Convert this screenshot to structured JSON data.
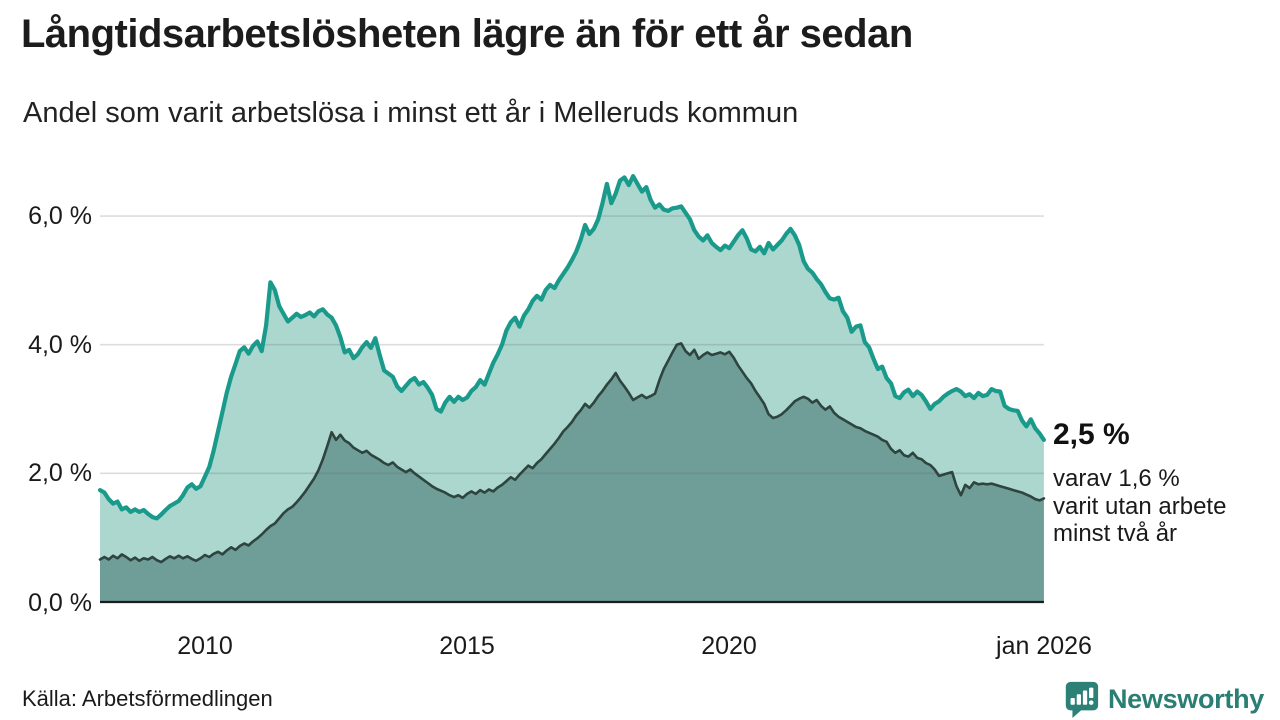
{
  "header": {
    "title": "Långtidsarbetslösheten lägre än för ett år sedan",
    "subtitle": "Andel som varit arbetslösa i minst ett år i Melleruds kommun"
  },
  "annotation": {
    "value_label": "2,5 %",
    "detail_line1": "varav 1,6 %",
    "detail_line2": "varit utan arbete",
    "detail_line3": "minst två år"
  },
  "footer": {
    "source": "Källa: Arbetsförmedlingen",
    "brand": "Newsworthy",
    "brand_logo_icon": "chart-bars-exclamation-pin"
  },
  "colors": {
    "line_total": "#1a9a8b",
    "area_total": "#abd7cf",
    "line_two_years": "#2e443f",
    "area_two_years": "#6f9d97",
    "grid": "rgba(100,100,100,0.22)",
    "axis": "#1c1c1c",
    "brand_teal": "#2c8076",
    "text": "#1a1a1a"
  },
  "chart_data": {
    "type": "area",
    "title": "Långtidsarbetslösheten lägre än för ett år sedan",
    "subtitle": "Andel som varit arbetslösa i minst ett år i Melleruds kommun",
    "unit": "%",
    "x_start_year": 2008,
    "x_step_months": 1,
    "x_end_label": "jan 2026",
    "x_range": [
      2008,
      2026
    ],
    "ylim": [
      0,
      7.0
    ],
    "grid": true,
    "legend_position": "none",
    "x_ticks": [
      {
        "year": 2010,
        "label": "2010"
      },
      {
        "year": 2015,
        "label": "2015"
      },
      {
        "year": 2020,
        "label": "2020"
      },
      {
        "year": 2026,
        "label": "jan 2026"
      }
    ],
    "y_ticks": [
      {
        "value": 0,
        "label": "0,0 %"
      },
      {
        "value": 2,
        "label": "2,0 %"
      },
      {
        "value": 4,
        "label": "4,0 %"
      },
      {
        "value": 6,
        "label": "6,0 %"
      }
    ],
    "series": [
      {
        "name": "Andel arbetslösa minst ett år",
        "last_value": 2.5,
        "values": [
          1.74,
          1.7,
          1.6,
          1.53,
          1.56,
          1.44,
          1.47,
          1.4,
          1.44,
          1.4,
          1.43,
          1.37,
          1.32,
          1.3,
          1.36,
          1.43,
          1.49,
          1.53,
          1.57,
          1.66,
          1.78,
          1.83,
          1.76,
          1.8,
          1.95,
          2.1,
          2.35,
          2.65,
          2.95,
          3.25,
          3.5,
          3.7,
          3.9,
          3.96,
          3.86,
          3.98,
          4.05,
          3.9,
          4.3,
          4.97,
          4.85,
          4.6,
          4.48,
          4.36,
          4.42,
          4.48,
          4.43,
          4.46,
          4.5,
          4.44,
          4.52,
          4.55,
          4.47,
          4.42,
          4.3,
          4.12,
          3.88,
          3.92,
          3.79,
          3.85,
          3.96,
          4.04,
          3.95,
          4.1,
          3.84,
          3.6,
          3.55,
          3.5,
          3.35,
          3.28,
          3.36,
          3.44,
          3.48,
          3.38,
          3.42,
          3.33,
          3.22,
          3.0,
          2.96,
          3.1,
          3.19,
          3.11,
          3.19,
          3.14,
          3.18,
          3.28,
          3.34,
          3.45,
          3.38,
          3.55,
          3.72,
          3.85,
          4.0,
          4.22,
          4.35,
          4.42,
          4.28,
          4.45,
          4.55,
          4.68,
          4.76,
          4.7,
          4.85,
          4.93,
          4.88,
          5.0,
          5.1,
          5.2,
          5.32,
          5.45,
          5.63,
          5.86,
          5.72,
          5.8,
          5.95,
          6.2,
          6.5,
          6.2,
          6.35,
          6.55,
          6.6,
          6.48,
          6.62,
          6.5,
          6.38,
          6.45,
          6.25,
          6.13,
          6.18,
          6.1,
          6.08,
          6.12,
          6.13,
          6.15,
          6.05,
          5.95,
          5.78,
          5.68,
          5.62,
          5.7,
          5.58,
          5.52,
          5.47,
          5.54,
          5.5,
          5.6,
          5.7,
          5.78,
          5.65,
          5.48,
          5.45,
          5.52,
          5.42,
          5.58,
          5.48,
          5.55,
          5.62,
          5.72,
          5.8,
          5.7,
          5.55,
          5.3,
          5.18,
          5.12,
          5.02,
          4.94,
          4.82,
          4.72,
          4.7,
          4.73,
          4.52,
          4.42,
          4.2,
          4.28,
          4.3,
          4.04,
          3.96,
          3.78,
          3.62,
          3.66,
          3.48,
          3.4,
          3.2,
          3.17,
          3.26,
          3.3,
          3.2,
          3.27,
          3.22,
          3.12,
          3.0,
          3.08,
          3.12,
          3.19,
          3.24,
          3.28,
          3.31,
          3.27,
          3.2,
          3.23,
          3.17,
          3.25,
          3.2,
          3.22,
          3.31,
          3.28,
          3.27,
          3.05,
          3.0,
          2.98,
          2.97,
          2.82,
          2.73,
          2.84,
          2.7,
          2.62,
          2.52
        ]
      },
      {
        "name": "Andel arbetslösa minst två år",
        "last_value": 1.6,
        "values": [
          0.66,
          0.7,
          0.66,
          0.72,
          0.68,
          0.74,
          0.7,
          0.65,
          0.69,
          0.64,
          0.68,
          0.66,
          0.7,
          0.65,
          0.62,
          0.67,
          0.71,
          0.68,
          0.72,
          0.68,
          0.71,
          0.67,
          0.64,
          0.68,
          0.73,
          0.7,
          0.75,
          0.78,
          0.74,
          0.8,
          0.85,
          0.81,
          0.87,
          0.91,
          0.88,
          0.94,
          0.99,
          1.05,
          1.12,
          1.18,
          1.22,
          1.3,
          1.38,
          1.44,
          1.48,
          1.55,
          1.63,
          1.72,
          1.82,
          1.92,
          2.05,
          2.22,
          2.42,
          2.64,
          2.52,
          2.6,
          2.51,
          2.47,
          2.4,
          2.36,
          2.32,
          2.35,
          2.29,
          2.25,
          2.21,
          2.16,
          2.13,
          2.17,
          2.1,
          2.06,
          2.02,
          2.06,
          2.0,
          1.95,
          1.9,
          1.85,
          1.8,
          1.76,
          1.73,
          1.7,
          1.66,
          1.63,
          1.66,
          1.62,
          1.68,
          1.72,
          1.68,
          1.74,
          1.7,
          1.75,
          1.72,
          1.78,
          1.82,
          1.88,
          1.94,
          1.9,
          1.98,
          2.05,
          2.12,
          2.08,
          2.16,
          2.22,
          2.3,
          2.38,
          2.46,
          2.55,
          2.65,
          2.72,
          2.8,
          2.9,
          2.98,
          3.08,
          3.02,
          3.1,
          3.2,
          3.28,
          3.38,
          3.46,
          3.56,
          3.44,
          3.35,
          3.25,
          3.14,
          3.18,
          3.22,
          3.17,
          3.2,
          3.24,
          3.45,
          3.62,
          3.75,
          3.88,
          4.0,
          4.02,
          3.9,
          3.84,
          3.92,
          3.78,
          3.84,
          3.88,
          3.84,
          3.86,
          3.88,
          3.85,
          3.89,
          3.8,
          3.68,
          3.58,
          3.48,
          3.4,
          3.28,
          3.18,
          3.08,
          2.92,
          2.86,
          2.88,
          2.92,
          2.98,
          3.05,
          3.12,
          3.16,
          3.19,
          3.16,
          3.1,
          3.14,
          3.05,
          2.99,
          3.04,
          2.94,
          2.88,
          2.84,
          2.8,
          2.76,
          2.72,
          2.7,
          2.66,
          2.63,
          2.6,
          2.57,
          2.52,
          2.49,
          2.38,
          2.32,
          2.36,
          2.28,
          2.26,
          2.32,
          2.24,
          2.22,
          2.16,
          2.13,
          2.06,
          1.96,
          1.98,
          2.0,
          2.02,
          1.8,
          1.66,
          1.82,
          1.77,
          1.86,
          1.83,
          1.84,
          1.83,
          1.84,
          1.82,
          1.8,
          1.78,
          1.76,
          1.74,
          1.72,
          1.7,
          1.67,
          1.64,
          1.6,
          1.58,
          1.61
        ]
      }
    ]
  }
}
